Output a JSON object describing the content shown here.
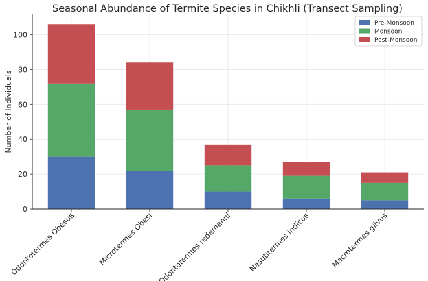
{
  "chart_data": {
    "type": "bar",
    "stacked": true,
    "title": "Seasonal Abundance of Termite Species in Chikhli (Transect Sampling)",
    "xlabel": "",
    "ylabel": "Number of Individuals",
    "ylim": [
      0,
      112
    ],
    "yticks": [
      0,
      20,
      40,
      60,
      80,
      100
    ],
    "grid": true,
    "legend_position": "top-right",
    "categories": [
      "Odontotermes Obesus",
      "Microtermes Obesi",
      "Odontotermes redemanni",
      "Nasutitermes indicus",
      "Macrotermes gilvus"
    ],
    "series": [
      {
        "name": "Pre-Monsoon",
        "color": "#4c72b0",
        "values": [
          30,
          22,
          10,
          6,
          5
        ]
      },
      {
        "name": "Monsoon",
        "color": "#55a868",
        "values": [
          42,
          35,
          15,
          13,
          10
        ]
      },
      {
        "name": "Post-Monsoon",
        "color": "#c44e52",
        "values": [
          34,
          27,
          12,
          8,
          6
        ]
      }
    ]
  }
}
